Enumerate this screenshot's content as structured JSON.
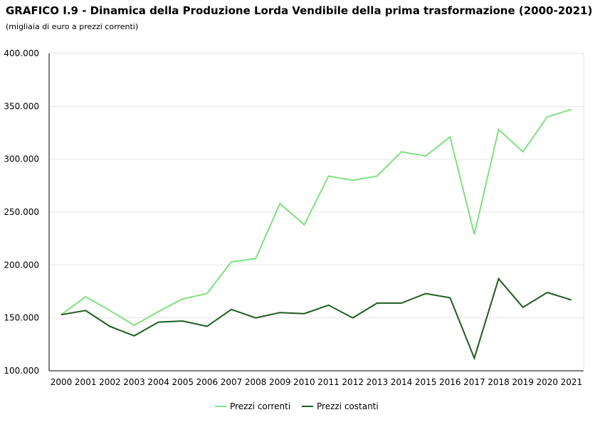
{
  "header": {
    "title": "GRAFICO I.9 - Dinamica della Produzione Lorda Vendibile della prima trasformazione (2000-2021)",
    "subtitle": "(migliaia di euro a prezzi correnti)"
  },
  "chart_data": {
    "type": "line",
    "title": "GRAFICO I.9 - Dinamica della Produzione Lorda Vendibile della prima trasformazione (2000-2021)",
    "subtitle": "(migliaia di euro a prezzi correnti)",
    "xlabel": "",
    "ylabel": "",
    "categories": [
      "2000",
      "2001",
      "2002",
      "2003",
      "2004",
      "2005",
      "2006",
      "2007",
      "2008",
      "2009",
      "2010",
      "2011",
      "2012",
      "2013",
      "2014",
      "2015",
      "2016",
      "2017",
      "2018",
      "2019",
      "2020",
      "2021"
    ],
    "ylim": [
      100000,
      400000
    ],
    "yticks": [
      100000,
      150000,
      200000,
      250000,
      300000,
      350000,
      400000
    ],
    "ytick_labels": [
      "100.000",
      "150.000",
      "200.000",
      "250.000",
      "300.000",
      "350.000",
      "400.000"
    ],
    "grid": true,
    "legend_position": "bottom",
    "series": [
      {
        "name": "Prezzi correnti",
        "color": "#7fe07f",
        "values": [
          153000,
          170000,
          157000,
          143000,
          156000,
          168000,
          173000,
          203000,
          206000,
          258000,
          238000,
          284000,
          280000,
          284000,
          307000,
          303000,
          321000,
          229000,
          328000,
          307000,
          340000,
          347000
        ]
      },
      {
        "name": "Prezzi costanti",
        "color": "#1e5c1e",
        "values": [
          153000,
          157000,
          142000,
          133000,
          146000,
          147000,
          142000,
          158000,
          150000,
          155000,
          154000,
          162000,
          150000,
          164000,
          164000,
          173000,
          169000,
          112000,
          187000,
          160000,
          174000,
          167000
        ]
      }
    ]
  }
}
